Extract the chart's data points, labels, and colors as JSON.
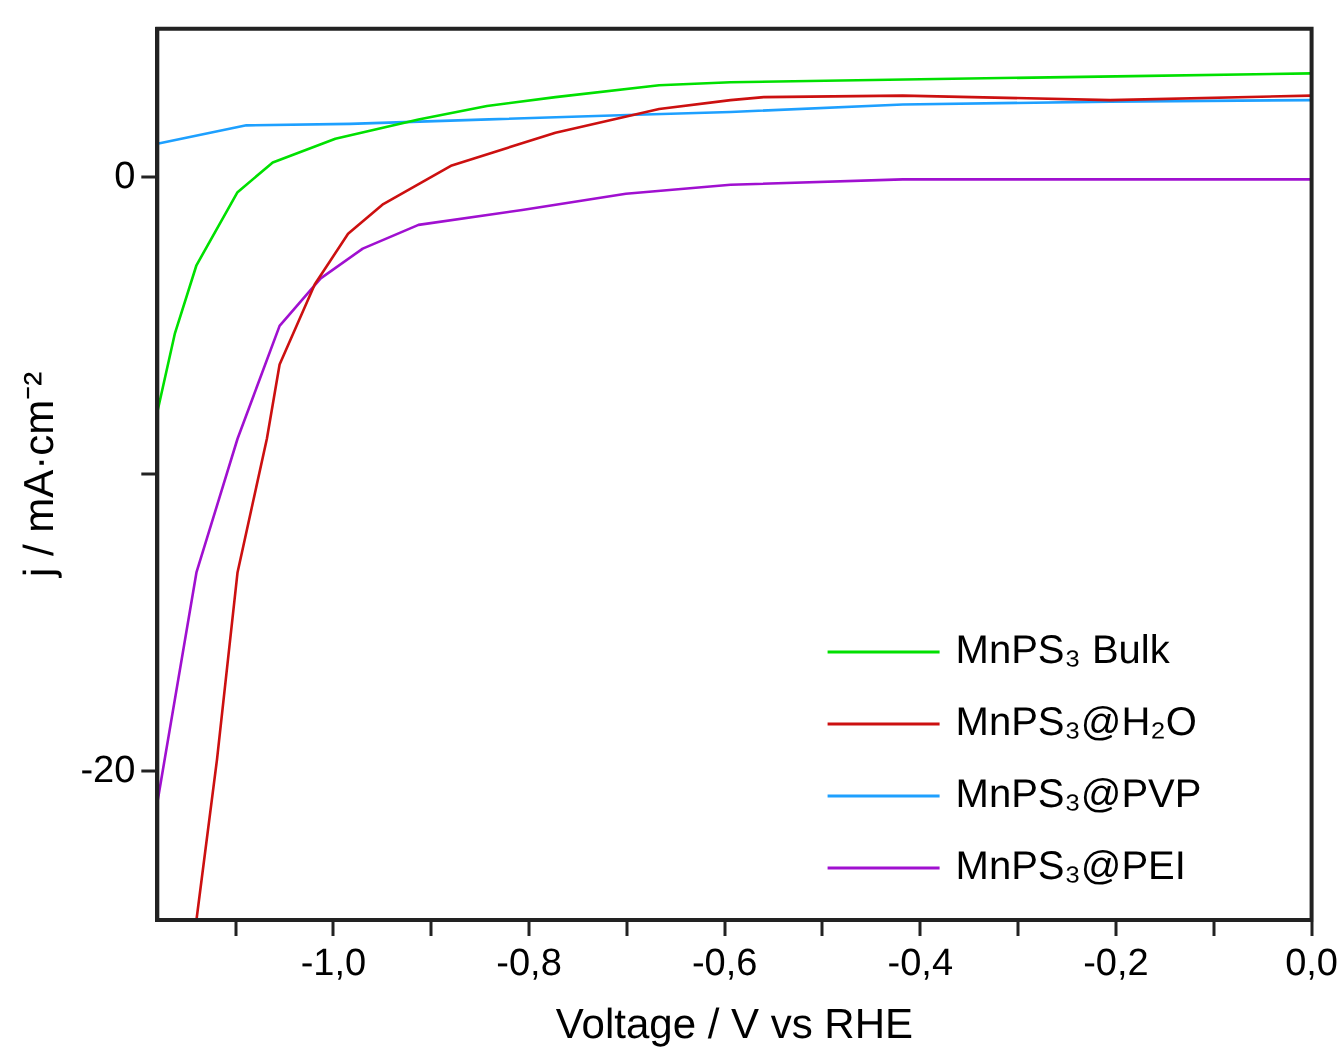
{
  "chart_data": {
    "type": "line",
    "xlabel": "Voltage / V vs RHE",
    "ylabel": "j / mA·cm⁻²",
    "xlim": [
      -1.18,
      0
    ],
    "ylim": [
      -25,
      5
    ],
    "xticks": [
      {
        "value": -1.1,
        "label": null
      },
      {
        "value": -1.0,
        "label": "-1,0"
      },
      {
        "value": -0.9,
        "label": null
      },
      {
        "value": -0.8,
        "label": "-0,8"
      },
      {
        "value": -0.7,
        "label": null
      },
      {
        "value": -0.6,
        "label": "-0,6"
      },
      {
        "value": -0.5,
        "label": null
      },
      {
        "value": -0.4,
        "label": "-0,4"
      },
      {
        "value": -0.3,
        "label": null
      },
      {
        "value": -0.2,
        "label": "-0,2"
      },
      {
        "value": -0.1,
        "label": null
      },
      {
        "value": 0,
        "label": "0,0"
      }
    ],
    "yticks": [
      -20,
      {
        "value": -10,
        "label": null
      },
      0
    ],
    "grid": false,
    "legend": "bottom right",
    "marker": "none",
    "line_style": "solid",
    "series": [
      {
        "name": "MnPS₃ Bulk",
        "color": "#00e000",
        "x": [
          -1.18,
          -1.162,
          -1.14,
          -1.098,
          -1.062,
          -0.998,
          -0.913,
          -0.843,
          -0.773,
          -0.667,
          -0.594,
          -0.4,
          -0.2,
          0
        ],
        "values": [
          -7.9,
          -5.25,
          -2.96,
          -0.5,
          0.5,
          1.3,
          1.95,
          2.4,
          2.7,
          3.1,
          3.2,
          3.3,
          3.4,
          3.5
        ]
      },
      {
        "name": "MnPS₃@H₂O",
        "color": "#cc1010",
        "x": [
          -1.14,
          -1.119,
          -1.098,
          -1.068,
          -1.055,
          -1.019,
          -0.985,
          -0.949,
          -0.879,
          -0.773,
          -0.667,
          -0.594,
          -0.56,
          -0.418,
          -0.206,
          0
        ],
        "values": [
          -25,
          -19.6,
          -13.3,
          -8.8,
          -6.3,
          -3.6,
          -1.9,
          -0.9,
          0.4,
          1.5,
          2.3,
          2.6,
          2.7,
          2.75,
          2.6,
          2.75
        ]
      },
      {
        "name": "MnPS₃@PVP",
        "color": "#1ea0ff",
        "x": [
          -1.18,
          -1.089,
          -0.983,
          -0.841,
          -0.699,
          -0.594,
          -0.418,
          -0.206,
          0
        ],
        "values": [
          1.13,
          1.75,
          1.8,
          1.95,
          2.1,
          2.2,
          2.45,
          2.55,
          2.6
        ]
      },
      {
        "name": "MnPS₃@PEI",
        "color": "#a010d0",
        "x": [
          -1.18,
          -1.14,
          -1.098,
          -1.055,
          -1.013,
          -0.97,
          -0.913,
          -0.807,
          -0.701,
          -0.594,
          -0.418,
          0
        ],
        "values": [
          -21.05,
          -13.3,
          -8.8,
          -5.0,
          -3.4,
          -2.4,
          -1.6,
          -1.1,
          -0.55,
          -0.25,
          -0.07,
          -0.07
        ]
      }
    ]
  }
}
